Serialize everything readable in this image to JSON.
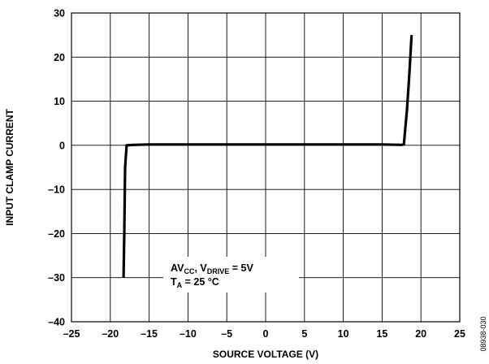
{
  "chart_data": {
    "type": "line",
    "xlabel": "SOURCE VOLTAGE (V)",
    "ylabel": "INPUT CLAMP CURRENT",
    "xlim": [
      -25,
      25
    ],
    "ylim": [
      -40,
      30
    ],
    "xticks": [
      -25,
      -20,
      -15,
      -10,
      -5,
      0,
      5,
      10,
      15,
      20,
      25
    ],
    "yticks": [
      -40,
      -30,
      -20,
      -10,
      0,
      10,
      20,
      30
    ],
    "xtick_labels": [
      "–25",
      "–20",
      "–15",
      "–10",
      "–5",
      "0",
      "5",
      "10",
      "15",
      "20",
      "25"
    ],
    "ytick_labels": [
      "–40",
      "–30",
      "–20",
      "–10",
      "0",
      "10",
      "20",
      "30"
    ],
    "grid": true,
    "series": [
      {
        "x": [
          -18.3,
          -18.2,
          -18.1,
          -17.9,
          -17.0,
          -15.0,
          -10.0,
          0.0,
          10.0,
          15.0,
          17.5,
          17.8,
          18.2,
          18.5,
          18.8
        ],
        "y": [
          -30.0,
          -20.0,
          -5.0,
          0.0,
          0.1,
          0.2,
          0.2,
          0.2,
          0.2,
          0.2,
          0.1,
          0.2,
          8.0,
          16.0,
          25.0
        ]
      }
    ],
    "annotation": {
      "line1_main": "AV",
      "line1_sub1": "CC",
      "line1_mid": ", V",
      "line1_sub2": "DRIVE",
      "line1_end": " = 5V",
      "line2_main": "T",
      "line2_sub": "A",
      "line2_end": " = 25 °C"
    },
    "figure_id": "08938-030"
  }
}
